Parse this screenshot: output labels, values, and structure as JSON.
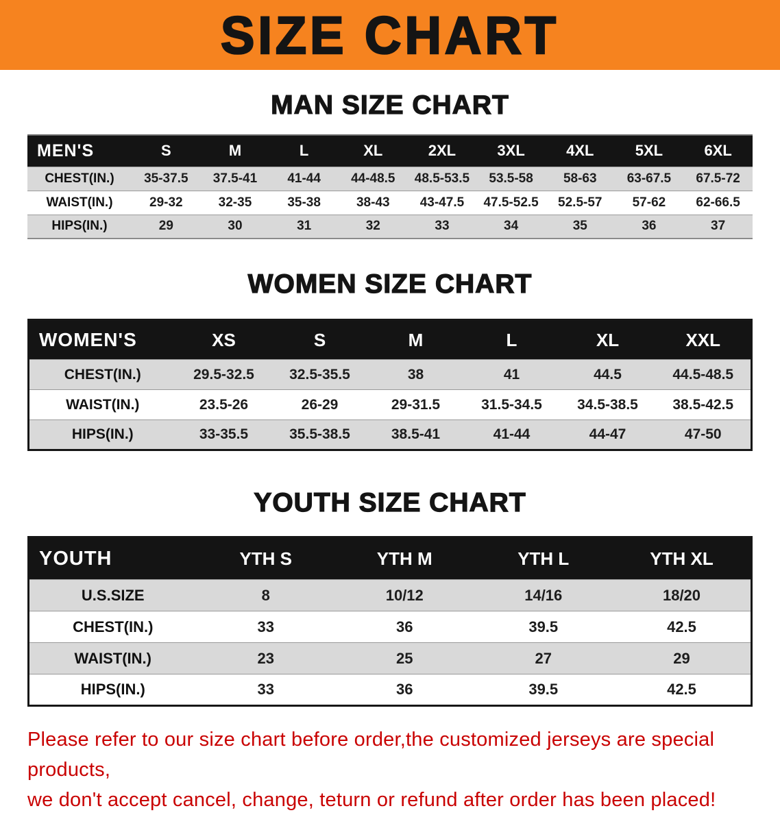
{
  "banner": {
    "title": "SIZE CHART"
  },
  "sections": {
    "men": {
      "heading": "MAN SIZE CHART"
    },
    "women": {
      "heading": "WOMEN SIZE CHART"
    },
    "youth": {
      "heading": "YOUTH SIZE CHART"
    }
  },
  "tables": {
    "men": {
      "header": [
        "MEN'S",
        "S",
        "M",
        "L",
        "XL",
        "2XL",
        "3XL",
        "4XL",
        "5XL",
        "6XL"
      ],
      "rows": [
        {
          "label": "CHEST(IN.)",
          "values": [
            "35-37.5",
            "37.5-41",
            "41-44",
            "44-48.5",
            "48.5-53.5",
            "53.5-58",
            "58-63",
            "63-67.5",
            "67.5-72"
          ]
        },
        {
          "label": "WAIST(IN.)",
          "values": [
            "29-32",
            "32-35",
            "35-38",
            "38-43",
            "43-47.5",
            "47.5-52.5",
            "52.5-57",
            "57-62",
            "62-66.5"
          ]
        },
        {
          "label": "HIPS(IN.)",
          "values": [
            "29",
            "30",
            "31",
            "32",
            "33",
            "34",
            "35",
            "36",
            "37"
          ]
        }
      ]
    },
    "women": {
      "header": [
        "WOMEN'S",
        "XS",
        "S",
        "M",
        "L",
        "XL",
        "XXL"
      ],
      "rows": [
        {
          "label": "CHEST(IN.)",
          "values": [
            "29.5-32.5",
            "32.5-35.5",
            "38",
            "41",
            "44.5",
            "44.5-48.5"
          ]
        },
        {
          "label": "WAIST(IN.)",
          "values": [
            "23.5-26",
            "26-29",
            "29-31.5",
            "31.5-34.5",
            "34.5-38.5",
            "38.5-42.5"
          ]
        },
        {
          "label": "HIPS(IN.)",
          "values": [
            "33-35.5",
            "35.5-38.5",
            "38.5-41",
            "41-44",
            "44-47",
            "47-50"
          ]
        }
      ]
    },
    "youth": {
      "header": [
        "YOUTH",
        "YTH S",
        "YTH M",
        "YTH L",
        "YTH XL"
      ],
      "rows": [
        {
          "label": "U.S.SIZE",
          "values": [
            "8",
            "10/12",
            "14/16",
            "18/20"
          ]
        },
        {
          "label": "CHEST(IN.)",
          "values": [
            "33",
            "36",
            "39.5",
            "42.5"
          ]
        },
        {
          "label": "WAIST(IN.)",
          "values": [
            "23",
            "25",
            "27",
            "29"
          ]
        },
        {
          "label": "HIPS(IN.)",
          "values": [
            "33",
            "36",
            "39.5",
            "42.5"
          ]
        }
      ]
    }
  },
  "footer": {
    "line1": "Please refer to our size chart before order,the customized jerseys are special products,",
    "line2": "we don't accept cancel, change, teturn or refund after order has been placed!"
  },
  "colors": {
    "banner_orange": "#f6831f",
    "header_black": "#141414",
    "row_gray": "#d9d9d9",
    "notice_red": "#c90202"
  }
}
